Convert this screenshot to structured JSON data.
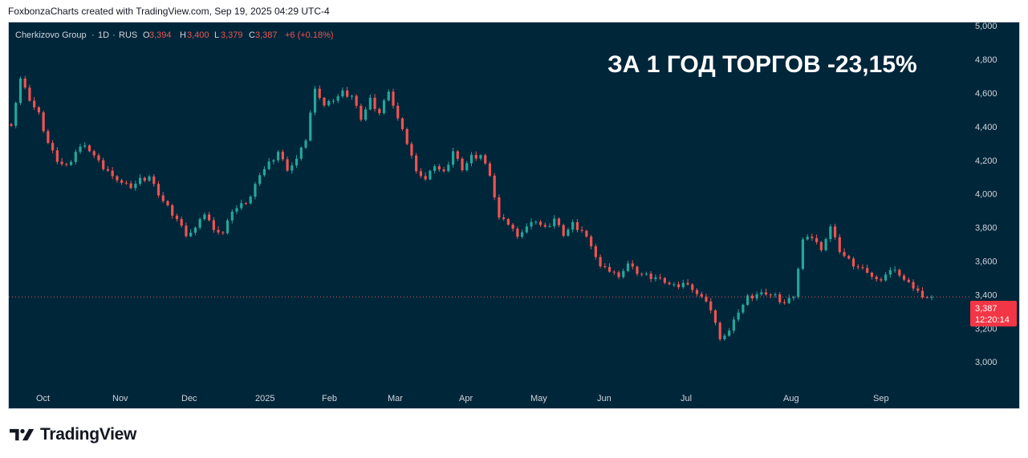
{
  "header": "FoxbonzaCharts created with TradingView.com, Sep 19, 2025 04:29 UTC-4",
  "brand": {
    "name": "TradingView",
    "icon": "tradingview-logo-icon"
  },
  "colors": {
    "background": "#00263a",
    "up": "#26a69a",
    "down": "#ef5350",
    "label": "#f23645"
  },
  "chart_data": {
    "type": "candlestick",
    "symbol": "Cherkizovo Group",
    "interval": "1D",
    "exchange": "RUS",
    "ohlc": {
      "o_label": "O",
      "o": "3,394",
      "h_label": "H",
      "h": "3,400",
      "l_label": "L",
      "l": "3,379",
      "c_label": "C",
      "c": "3,387",
      "change": "+6 (+0.18%)"
    },
    "annotation": "ЗА 1 ГОД ТОРГОВ -23,15%",
    "last_price": 3387,
    "last_price_label": "3,387",
    "countdown": "12:20:14",
    "ylim": [
      2920,
      5010
    ],
    "yticks": [
      3000,
      3200,
      3400,
      3600,
      3800,
      4000,
      4200,
      4400,
      4600,
      4800,
      5000
    ],
    "ytick_labels": [
      "3,000",
      "3,200",
      "3,400",
      "3,600",
      "3,800",
      "4,000",
      "4,200",
      "4,400",
      "4,600",
      "4,800",
      "5,000"
    ],
    "xticks": [
      "Oct",
      "Nov",
      "Dec",
      "2025",
      "Feb",
      "Mar",
      "Apr",
      "May",
      "Jun",
      "Jul",
      "Aug",
      "Sep"
    ],
    "grid": false,
    "closes": [
      4420,
      4680,
      4560,
      4470,
      4300,
      4200,
      4160,
      4250,
      4300,
      4220,
      4150,
      4120,
      4060,
      4040,
      4080,
      4100,
      4000,
      3920,
      3850,
      3760,
      3790,
      3880,
      3800,
      3760,
      3900,
      3930,
      3980,
      4120,
      4180,
      4250,
      4150,
      4200,
      4320,
      4640,
      4520,
      4560,
      4600,
      4580,
      4450,
      4560,
      4480,
      4620,
      4440,
      4300,
      4150,
      4080,
      4170,
      4120,
      4250,
      4150,
      4220,
      4230,
      4120,
      3850,
      3820,
      3760,
      3800,
      3840,
      3790,
      3850,
      3760,
      3820,
      3780,
      3700,
      3560,
      3540,
      3520,
      3580,
      3530,
      3510,
      3500,
      3480,
      3450,
      3470,
      3440,
      3380,
      3310,
      3150,
      3180,
      3300,
      3380,
      3400,
      3410,
      3390,
      3350,
      3400,
      3720,
      3740,
      3680,
      3800,
      3660,
      3600,
      3560,
      3540,
      3480,
      3520,
      3560,
      3480,
      3440,
      3400,
      3387
    ]
  }
}
